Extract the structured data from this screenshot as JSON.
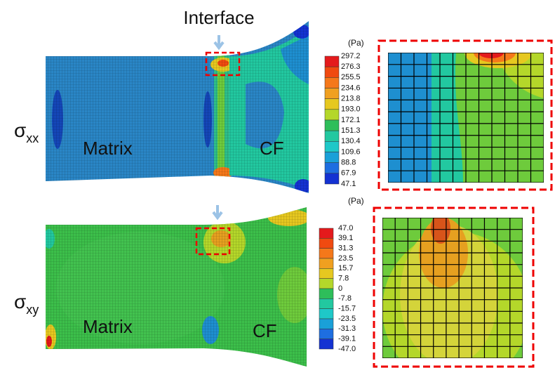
{
  "annotation": {
    "interface": "Interface"
  },
  "panels": [
    {
      "stress": {
        "symbol": "σ",
        "subscript": "xx"
      },
      "matrix_label": "Matrix",
      "fiber_label": "CF",
      "colorbar": {
        "unit": "(Pa)",
        "labels": [
          "297.2",
          "276.3",
          "255.5",
          "234.6",
          "213.8",
          "193.0",
          "172.1",
          "151.3",
          "130.4",
          "109.6",
          "88.8",
          "67.9",
          "47.1"
        ]
      }
    },
    {
      "stress": {
        "symbol": "σ",
        "subscript": "xy"
      },
      "matrix_label": "Matrix",
      "fiber_label": "CF",
      "colorbar": {
        "unit": "(Pa)",
        "labels": [
          "47.0",
          "39.1",
          "31.3",
          "23.5",
          "15.7",
          "7.8",
          "0",
          "-7.8",
          "-15.7",
          "-23.5",
          "-31.3",
          "-39.1",
          "-47.0"
        ]
      }
    }
  ]
}
